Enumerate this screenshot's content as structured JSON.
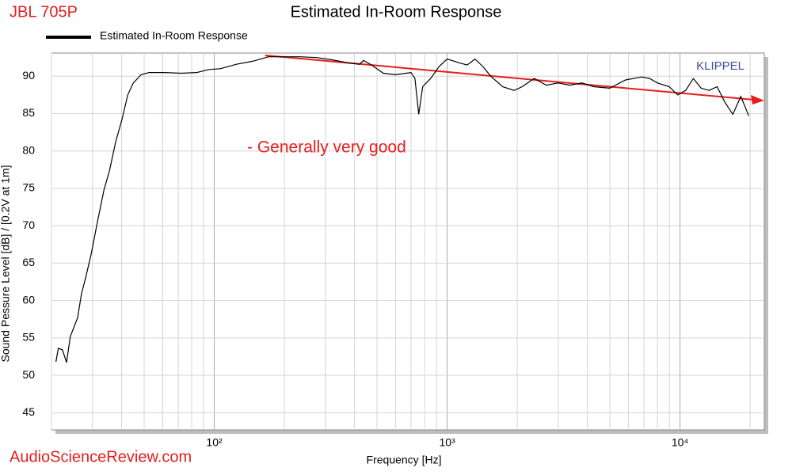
{
  "chart_data": {
    "type": "line",
    "title": "Estimated In-Room Response",
    "header_label": "JBL 705P",
    "watermark": "KLIPPEL",
    "annotation": "- Generally very good",
    "footer": "AudioScienceReview.com",
    "x_label": "Frequency [Hz]",
    "y_label": "Sound Pessure Level [dB]  /  [0.2V at 1m]",
    "x_log": true,
    "grid": true,
    "xlim": [
      20,
      23000
    ],
    "ylim": [
      42.7,
      93.1
    ],
    "xticks": [
      {
        "value": 100,
        "label": "10²"
      },
      {
        "value": 1000,
        "label": "10³"
      },
      {
        "value": 10000,
        "label": "10⁴"
      }
    ],
    "xminorticks": [
      20,
      30,
      40,
      50,
      60,
      70,
      80,
      90,
      200,
      300,
      400,
      500,
      600,
      700,
      800,
      900,
      2000,
      3000,
      4000,
      5000,
      6000,
      7000,
      8000,
      9000,
      20000
    ],
    "yticks": [
      45,
      50,
      55,
      60,
      65,
      70,
      75,
      80,
      85,
      90
    ],
    "x": [
      20.9,
      21.4,
      22.3,
      23.2,
      24.1,
      25.9,
      26.9,
      28.0,
      29.6,
      31.5,
      33.6,
      35.5,
      37.7,
      40.2,
      42.5,
      44.9,
      48.5,
      52.5,
      61.4,
      71.9,
      84.1,
      94.7,
      106,
      124.5,
      146,
      171,
      200,
      234,
      274,
      320,
      374,
      420,
      437,
      474,
      532,
      598,
      700,
      727,
      755,
      785,
      850,
      923,
      1000,
      1126,
      1218,
      1317,
      1424,
      1540,
      1730,
      1940,
      2100,
      2365,
      2665,
      2990,
      3370,
      3790,
      4260,
      4990,
      5840,
      6840,
      7400,
      8000,
      8990,
      9770,
      10580,
      11400,
      12320,
      13330,
      14420,
      15600,
      16860,
      18240,
      19730
    ],
    "series": [
      {
        "name": "Estimated In-Room Response",
        "color": "#000000",
        "values": [
          51.8,
          53.6,
          53.4,
          51.7,
          55.2,
          57.7,
          60.9,
          63.0,
          66.2,
          70.5,
          74.8,
          77.4,
          81.2,
          84.3,
          87.5,
          89.1,
          90.2,
          90.5,
          90.5,
          90.4,
          90.5,
          90.9,
          91.0,
          91.6,
          92.0,
          92.6,
          92.6,
          92.6,
          92.5,
          92.2,
          91.8,
          91.6,
          92.1,
          91.5,
          90.4,
          90.2,
          90.5,
          89.7,
          84.9,
          88.6,
          89.7,
          91.3,
          92.3,
          91.8,
          91.5,
          92.3,
          91.3,
          90.0,
          88.6,
          88.1,
          88.6,
          89.7,
          88.8,
          89.1,
          88.8,
          89.1,
          88.6,
          88.4,
          89.5,
          89.9,
          89.7,
          89.1,
          88.6,
          87.5,
          88.1,
          89.7,
          88.4,
          88.1,
          88.6,
          86.5,
          84.9,
          87.3,
          84.7
        ]
      }
    ]
  }
}
